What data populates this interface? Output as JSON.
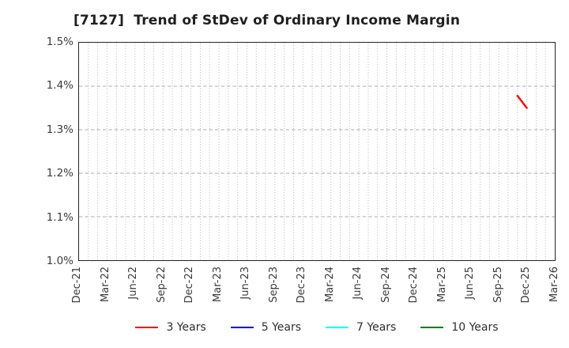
{
  "title": "[7127]  Trend of StDev of Ordinary Income Margin",
  "colors": {
    "background": "#ffffff",
    "plot_border": "#242424",
    "grid": "#aeaeae",
    "tick_text": "#3a3a3a",
    "title_text": "#1f1f1f"
  },
  "chart_data": {
    "type": "line",
    "title": "[7127]  Trend of StDev of Ordinary Income Margin",
    "x_axis": {
      "tick_labels": [
        "Dec-21",
        "Mar-22",
        "Jun-22",
        "Sep-22",
        "Dec-22",
        "Mar-23",
        "Jun-23",
        "Sep-23",
        "Dec-23",
        "Mar-24",
        "Jun-24",
        "Sep-24",
        "Dec-24",
        "Mar-25",
        "Jun-25",
        "Sep-25",
        "Dec-25",
        "Mar-26"
      ],
      "tick_interval_months": 3,
      "minor_grid_interval_months": 1,
      "months_total": 51
    },
    "y_axis": {
      "min": 1.0,
      "max": 1.5,
      "unit": "%",
      "tick_values": [
        1.0,
        1.1,
        1.2,
        1.3,
        1.4,
        1.5
      ],
      "tick_labels": [
        "1.0%",
        "1.1%",
        "1.2%",
        "1.3%",
        "1.4%",
        "1.5%"
      ]
    },
    "grid": true,
    "legend_position": "bottom",
    "series": [
      {
        "name": "3 Years",
        "color": "#ff0000",
        "points": [
          {
            "label": "Nov-25",
            "month": 47,
            "value": 1.378
          },
          {
            "label": "Dec-25",
            "month": 48,
            "value": 1.35
          }
        ]
      },
      {
        "name": "5 Years",
        "color": "#0000ff",
        "points": []
      },
      {
        "name": "7 Years",
        "color": "#00ffff",
        "points": []
      },
      {
        "name": "10 Years",
        "color": "#008000",
        "points": []
      }
    ]
  }
}
